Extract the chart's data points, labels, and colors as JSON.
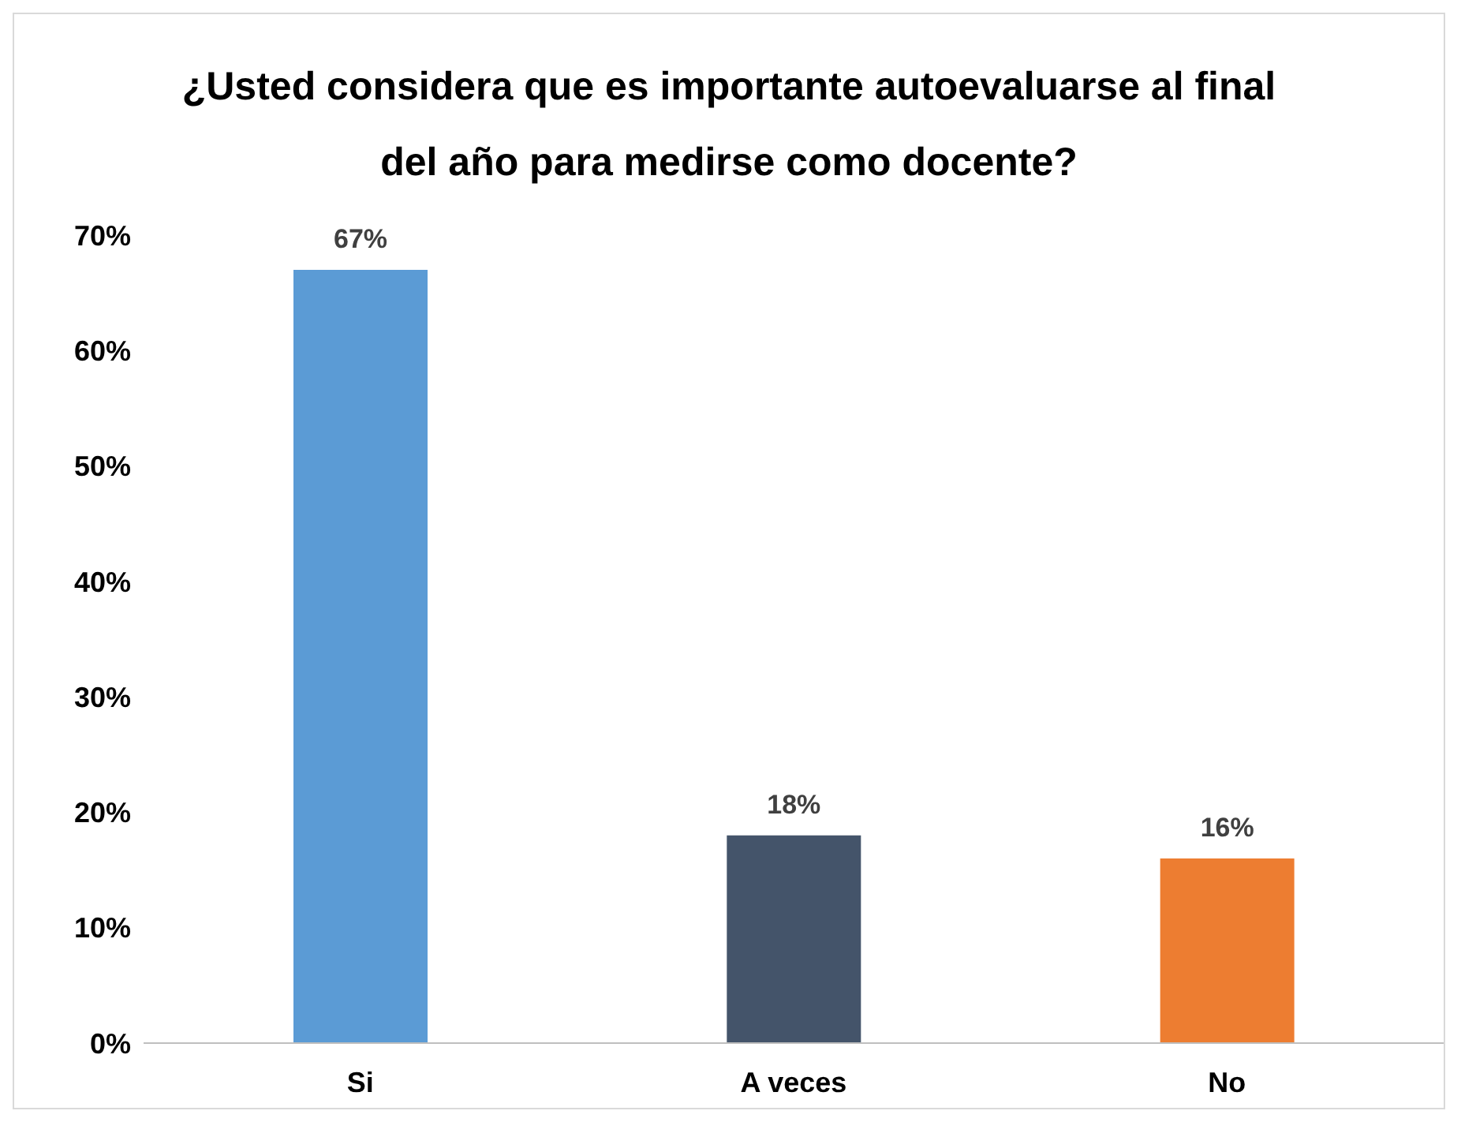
{
  "chart_data": {
    "type": "bar",
    "title": "¿Usted considera que es importante autoevaluarse al final del año para medirse como docente?",
    "categories": [
      "Si",
      "A veces",
      "No"
    ],
    "values": [
      67,
      18,
      16
    ],
    "colors": [
      "#5b9bd5",
      "#44546a",
      "#ed7d31"
    ],
    "value_labels": [
      "67%",
      "18%",
      "16%"
    ],
    "ylim": [
      0,
      70
    ],
    "yticks": [
      {
        "value": 0,
        "label": "0%"
      },
      {
        "value": 10,
        "label": "10%"
      },
      {
        "value": 20,
        "label": "20%"
      },
      {
        "value": 30,
        "label": "30%"
      },
      {
        "value": 40,
        "label": "40%"
      },
      {
        "value": 50,
        "label": "50%"
      },
      {
        "value": 60,
        "label": "60%"
      },
      {
        "value": 70,
        "label": "70%"
      }
    ],
    "grid": false,
    "legend": false
  }
}
